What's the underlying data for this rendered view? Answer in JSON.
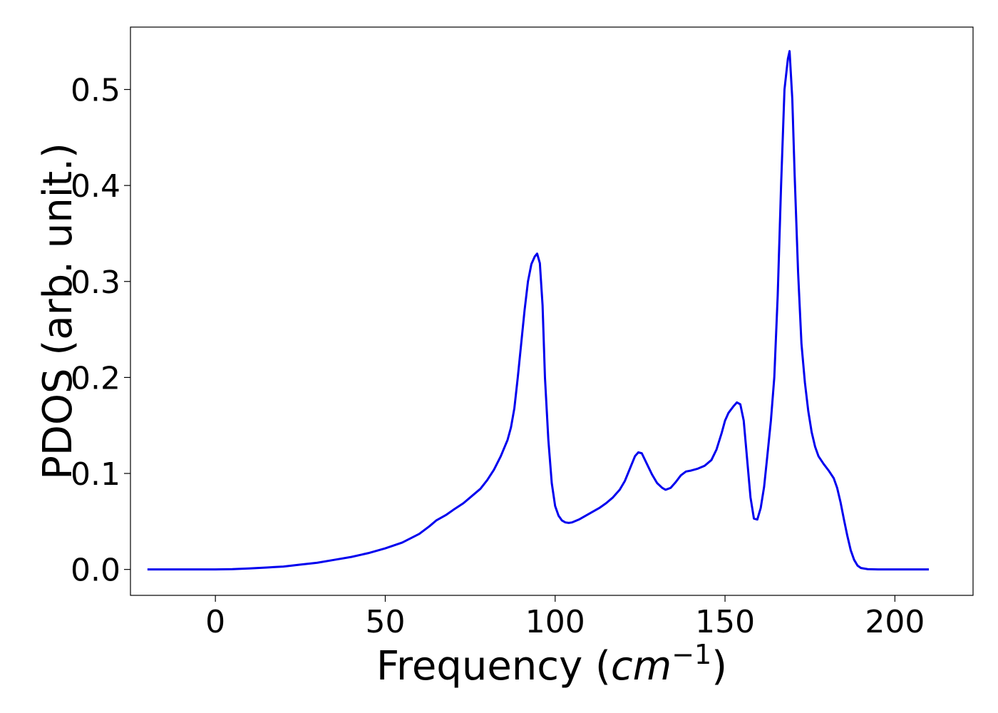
{
  "chart_data": {
    "type": "line",
    "title": "",
    "xlabel_text": "Frequency (",
    "xlabel_unit": "cm",
    "xlabel_exponent": "−1",
    "xlabel_close": ")",
    "ylabel": "PDOS (arb. unit.)",
    "xlim": [
      -25,
      223
    ],
    "ylim": [
      -0.027,
      0.565
    ],
    "xticks": [
      0,
      50,
      100,
      150,
      200
    ],
    "xtick_labels": [
      "0",
      "50",
      "100",
      "150",
      "200"
    ],
    "yticks": [
      0.0,
      0.1,
      0.2,
      0.3,
      0.4,
      0.5
    ],
    "ytick_labels": [
      "0.0",
      "0.1",
      "0.2",
      "0.3",
      "0.4",
      "0.5"
    ],
    "grid": false,
    "legend": "none",
    "series": [
      {
        "color": "#0000ee",
        "points": [
          [
            -20,
            0.0
          ],
          [
            0,
            0.0
          ],
          [
            5,
            0.0003
          ],
          [
            10,
            0.001
          ],
          [
            15,
            0.002
          ],
          [
            20,
            0.003
          ],
          [
            25,
            0.005
          ],
          [
            30,
            0.007
          ],
          [
            35,
            0.01
          ],
          [
            40,
            0.013
          ],
          [
            45,
            0.017
          ],
          [
            50,
            0.022
          ],
          [
            55,
            0.028
          ],
          [
            60,
            0.037
          ],
          [
            63,
            0.045
          ],
          [
            65,
            0.051
          ],
          [
            68,
            0.057
          ],
          [
            70,
            0.062
          ],
          [
            73,
            0.069
          ],
          [
            75,
            0.075
          ],
          [
            78,
            0.084
          ],
          [
            80,
            0.093
          ],
          [
            82,
            0.104
          ],
          [
            84,
            0.118
          ],
          [
            86,
            0.135
          ],
          [
            87,
            0.148
          ],
          [
            88,
            0.168
          ],
          [
            89,
            0.2
          ],
          [
            90,
            0.235
          ],
          [
            91,
            0.27
          ],
          [
            92,
            0.3
          ],
          [
            93,
            0.318
          ],
          [
            94,
            0.326
          ],
          [
            94.7,
            0.329
          ],
          [
            95.5,
            0.319
          ],
          [
            96.3,
            0.275
          ],
          [
            97,
            0.2
          ],
          [
            98,
            0.135
          ],
          [
            99,
            0.09
          ],
          [
            100,
            0.066
          ],
          [
            101,
            0.056
          ],
          [
            102,
            0.051
          ],
          [
            103,
            0.049
          ],
          [
            104,
            0.0485
          ],
          [
            105,
            0.049
          ],
          [
            107,
            0.052
          ],
          [
            110,
            0.058
          ],
          [
            113,
            0.064
          ],
          [
            115,
            0.069
          ],
          [
            117,
            0.075
          ],
          [
            119,
            0.083
          ],
          [
            120.5,
            0.092
          ],
          [
            122,
            0.105
          ],
          [
            123.5,
            0.118
          ],
          [
            124.5,
            0.122
          ],
          [
            125.5,
            0.121
          ],
          [
            127,
            0.11
          ],
          [
            128.5,
            0.099
          ],
          [
            130,
            0.09
          ],
          [
            131.5,
            0.085
          ],
          [
            132.5,
            0.083
          ],
          [
            134,
            0.085
          ],
          [
            135.5,
            0.091
          ],
          [
            137,
            0.098
          ],
          [
            138.5,
            0.102
          ],
          [
            140,
            0.103
          ],
          [
            142,
            0.105
          ],
          [
            144,
            0.108
          ],
          [
            146,
            0.114
          ],
          [
            147.5,
            0.125
          ],
          [
            149,
            0.142
          ],
          [
            150,
            0.155
          ],
          [
            151,
            0.163
          ],
          [
            152.5,
            0.17
          ],
          [
            153.5,
            0.174
          ],
          [
            154.5,
            0.172
          ],
          [
            155.5,
            0.155
          ],
          [
            156.5,
            0.115
          ],
          [
            157.5,
            0.075
          ],
          [
            158.5,
            0.053
          ],
          [
            159.5,
            0.052
          ],
          [
            160.5,
            0.064
          ],
          [
            161.5,
            0.086
          ],
          [
            162.5,
            0.12
          ],
          [
            163.5,
            0.155
          ],
          [
            164.5,
            0.2
          ],
          [
            165.5,
            0.285
          ],
          [
            166.5,
            0.4
          ],
          [
            167.5,
            0.5
          ],
          [
            168.5,
            0.532
          ],
          [
            169,
            0.54
          ],
          [
            169.8,
            0.49
          ],
          [
            170.5,
            0.41
          ],
          [
            171.5,
            0.31
          ],
          [
            172.5,
            0.235
          ],
          [
            173.5,
            0.195
          ],
          [
            174.5,
            0.165
          ],
          [
            175.5,
            0.143
          ],
          [
            176.5,
            0.128
          ],
          [
            177.5,
            0.118
          ],
          [
            179,
            0.11
          ],
          [
            180.5,
            0.103
          ],
          [
            182,
            0.095
          ],
          [
            183,
            0.085
          ],
          [
            184,
            0.07
          ],
          [
            185,
            0.052
          ],
          [
            186,
            0.035
          ],
          [
            187,
            0.02
          ],
          [
            188,
            0.01
          ],
          [
            189,
            0.004
          ],
          [
            190,
            0.0015
          ],
          [
            192,
            0.0003
          ],
          [
            195,
            0.0
          ],
          [
            200,
            0.0
          ],
          [
            210,
            0.0
          ]
        ]
      }
    ]
  }
}
